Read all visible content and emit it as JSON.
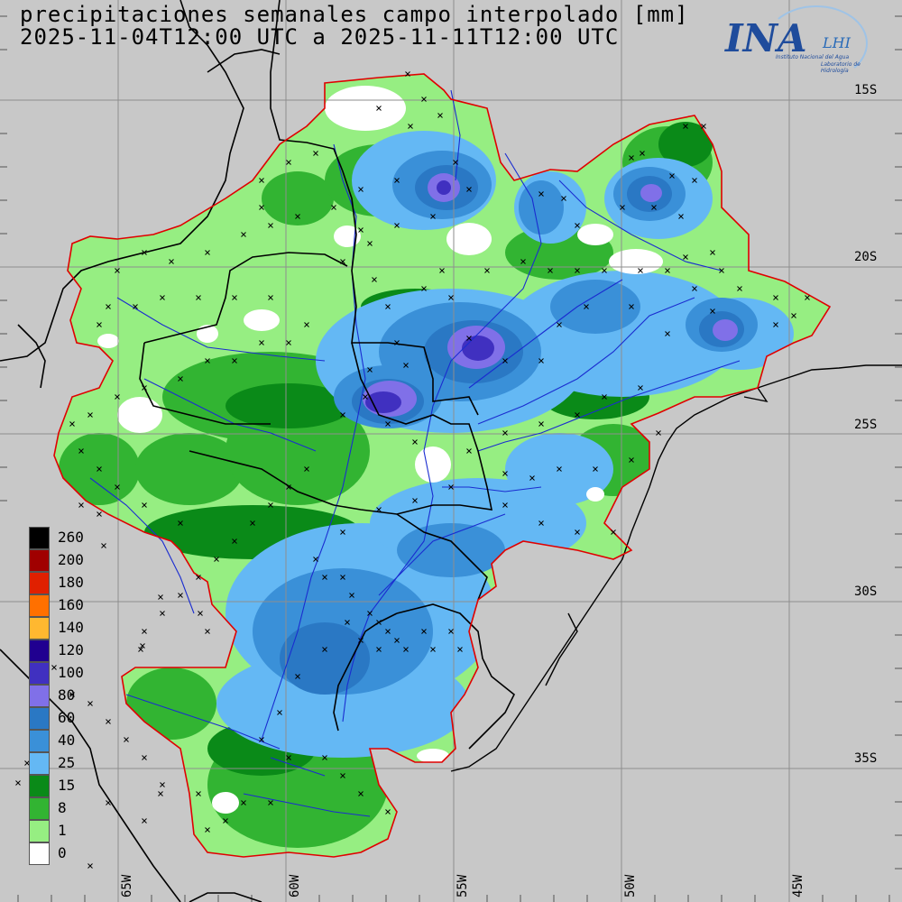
{
  "title": {
    "line1": "precipitaciones semanales campo interpolado [mm]",
    "line2": "2025-11-04T12:00 UTC a 2025-11-11T12:00 UTC"
  },
  "logo": {
    "main": "INA",
    "lhi": "LHI",
    "sub1": "Instituto Nacional del Agua",
    "sub2": "Laboratorio de Hidrología"
  },
  "legend": {
    "items": [
      {
        "label": "260",
        "color": "#000000"
      },
      {
        "label": "200",
        "color": "#a00000"
      },
      {
        "label": "180",
        "color": "#e02000"
      },
      {
        "label": "160",
        "color": "#ff7000"
      },
      {
        "label": "140",
        "color": "#ffb830"
      },
      {
        "label": "120",
        "color": "#200090"
      },
      {
        "label": "100",
        "color": "#4030c0"
      },
      {
        "label": "80",
        "color": "#8070e8"
      },
      {
        "label": "60",
        "color": "#2a78c4"
      },
      {
        "label": "40",
        "color": "#3a90d8"
      },
      {
        "label": "25",
        "color": "#64b8f4"
      },
      {
        "label": "15",
        "color": "#0a8a18"
      },
      {
        "label": "8",
        "color": "#32b432"
      },
      {
        "label": "1",
        "color": "#96ee82"
      },
      {
        "label": "0",
        "color": "#ffffff"
      }
    ]
  },
  "grid": {
    "lat_labels": [
      "15S",
      "20S",
      "25S",
      "30S",
      "35S"
    ],
    "lon_labels": [
      "65W",
      "60W",
      "55W",
      "50W",
      "45W"
    ]
  },
  "colors": {
    "background": "#c8c8c8",
    "gridline": "#8e8e8e",
    "basin_outline": "#e00000",
    "rivers": "#1a2cd0",
    "borders": "#000000"
  }
}
